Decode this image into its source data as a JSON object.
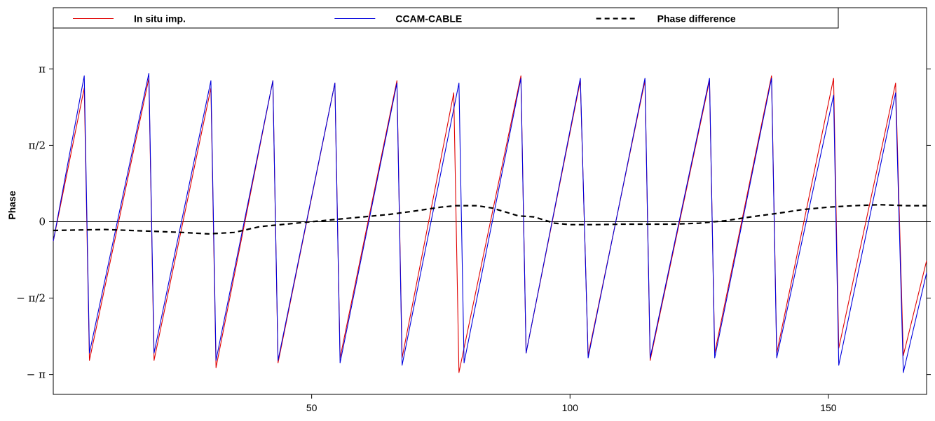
{
  "chart_data": {
    "type": "line",
    "ylabel": "Phase",
    "xlabel": "",
    "xlim": [
      0,
      169
    ],
    "ylim": [
      -3.55,
      4.4
    ],
    "x_ticks": [
      {
        "value": 50,
        "label": "50"
      },
      {
        "value": 100,
        "label": "100"
      },
      {
        "value": 150,
        "label": "150"
      }
    ],
    "y_ticks": [
      {
        "value": -3.14159,
        "label": "− π"
      },
      {
        "value": -1.5708,
        "label": "− π/2"
      },
      {
        "value": 0,
        "label": "0"
      },
      {
        "value": 1.5708,
        "label": "π/2"
      },
      {
        "value": 3.14159,
        "label": "π"
      }
    ],
    "legend": {
      "position": "top",
      "entries": [
        {
          "label": "In situ imp.",
          "color": "#e00000",
          "dash": "solid"
        },
        {
          "label": "CCAM-CABLE",
          "color": "#0000dd",
          "dash": "solid"
        },
        {
          "label": "Phase difference",
          "color": "#000000",
          "dash": "dashed"
        }
      ]
    },
    "series": [
      {
        "name": "In situ imp.",
        "color": "#e00000",
        "dash": "solid",
        "points": [
          [
            0,
            -0.4
          ],
          [
            6,
            2.75
          ],
          [
            7,
            -2.85
          ],
          [
            18.5,
            2.95
          ],
          [
            19.5,
            -2.85
          ],
          [
            30.5,
            2.75
          ],
          [
            31.5,
            -3.0
          ],
          [
            42.5,
            2.9
          ],
          [
            43.5,
            -2.9
          ],
          [
            54.5,
            2.85
          ],
          [
            55.5,
            -2.8
          ],
          [
            66.5,
            2.9
          ],
          [
            67.5,
            -2.8
          ],
          [
            77.5,
            2.65
          ],
          [
            78.5,
            -3.1
          ],
          [
            90.5,
            3.0
          ],
          [
            91.5,
            -2.7
          ],
          [
            102,
            2.9
          ],
          [
            103.5,
            -2.75
          ],
          [
            114.5,
            2.9
          ],
          [
            115.5,
            -2.85
          ],
          [
            127,
            2.9
          ],
          [
            128,
            -2.7
          ],
          [
            139,
            3.0
          ],
          [
            140,
            -2.7
          ],
          [
            151,
            2.95
          ],
          [
            152,
            -2.6
          ],
          [
            163,
            2.85
          ],
          [
            164.5,
            -2.75
          ],
          [
            169,
            -0.8
          ]
        ]
      },
      {
        "name": "CCAM-CABLE",
        "color": "#0000dd",
        "dash": "solid",
        "points": [
          [
            0,
            -0.4
          ],
          [
            6,
            3.0
          ],
          [
            7,
            -2.7
          ],
          [
            18.5,
            3.05
          ],
          [
            19.5,
            -2.7
          ],
          [
            30.5,
            2.9
          ],
          [
            31.5,
            -2.85
          ],
          [
            42.5,
            2.9
          ],
          [
            43.5,
            -2.85
          ],
          [
            54.5,
            2.85
          ],
          [
            55.5,
            -2.9
          ],
          [
            66.5,
            2.85
          ],
          [
            67.5,
            -2.95
          ],
          [
            78.5,
            2.85
          ],
          [
            79.5,
            -2.9
          ],
          [
            90.5,
            2.95
          ],
          [
            91.5,
            -2.7
          ],
          [
            102,
            2.95
          ],
          [
            103.5,
            -2.8
          ],
          [
            114.5,
            2.95
          ],
          [
            115.5,
            -2.8
          ],
          [
            127,
            2.95
          ],
          [
            128,
            -2.8
          ],
          [
            139,
            2.95
          ],
          [
            140,
            -2.8
          ],
          [
            151,
            2.6
          ],
          [
            152,
            -2.95
          ],
          [
            163,
            2.65
          ],
          [
            164.5,
            -3.1
          ],
          [
            169,
            -1.05
          ]
        ]
      },
      {
        "name": "Phase difference",
        "color": "#000000",
        "dash": "dashed",
        "points": [
          [
            0,
            -0.18
          ],
          [
            10,
            -0.16
          ],
          [
            20,
            -0.2
          ],
          [
            25,
            -0.22
          ],
          [
            30,
            -0.25
          ],
          [
            35,
            -0.22
          ],
          [
            40,
            -0.1
          ],
          [
            45,
            -0.05
          ],
          [
            50,
            0.0
          ],
          [
            55,
            0.05
          ],
          [
            60,
            0.1
          ],
          [
            65,
            0.15
          ],
          [
            70,
            0.22
          ],
          [
            75,
            0.3
          ],
          [
            78,
            0.33
          ],
          [
            82,
            0.33
          ],
          [
            85,
            0.28
          ],
          [
            90,
            0.12
          ],
          [
            93,
            0.1
          ],
          [
            97,
            -0.03
          ],
          [
            100,
            -0.06
          ],
          [
            105,
            -0.06
          ],
          [
            110,
            -0.05
          ],
          [
            115,
            -0.05
          ],
          [
            120,
            -0.05
          ],
          [
            125,
            -0.03
          ],
          [
            130,
            0.02
          ],
          [
            135,
            0.1
          ],
          [
            140,
            0.17
          ],
          [
            145,
            0.25
          ],
          [
            150,
            0.3
          ],
          [
            155,
            0.33
          ],
          [
            160,
            0.35
          ],
          [
            165,
            0.33
          ],
          [
            169,
            0.33
          ]
        ]
      }
    ]
  }
}
